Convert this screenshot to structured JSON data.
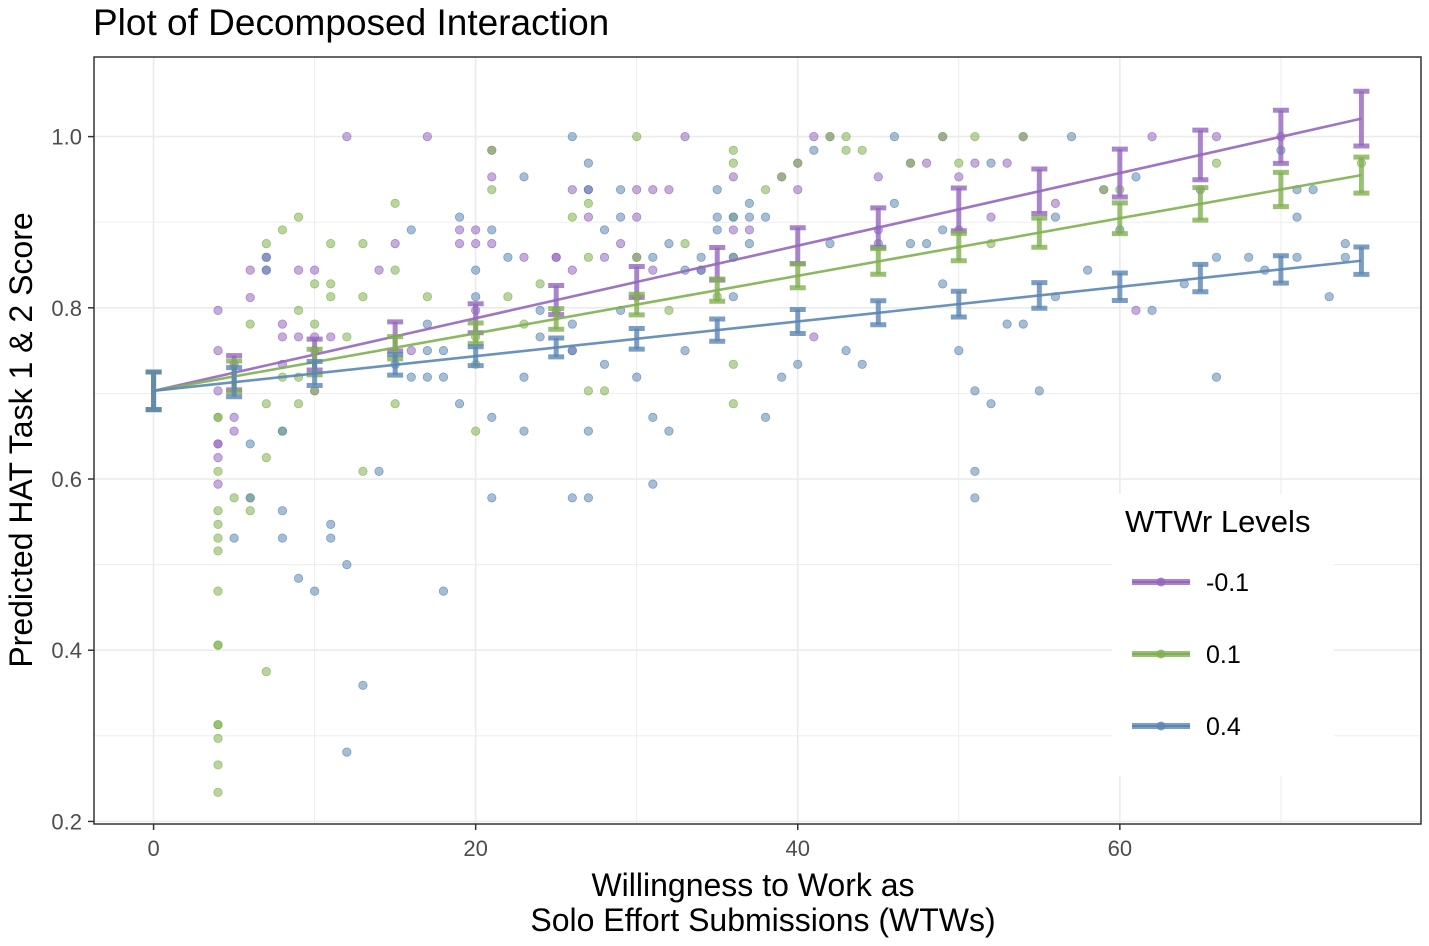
{
  "chart_data": {
    "type": "line",
    "title": "Plot of Decomposed Interaction",
    "xlabel": [
      "Willingness to Work as",
      "Solo Effort Submissions (WTWs)"
    ],
    "ylabel": "Predicted HAT Task 1 & 2 Score",
    "xlim": [
      -3.7,
      78.7
    ],
    "ylim": [
      0.197,
      1.093
    ],
    "x_ticks": [
      0,
      20,
      40,
      60
    ],
    "y_ticks": [
      0.2,
      0.4,
      0.6,
      0.8,
      1.0
    ],
    "y_tick_labels": [
      "0.2",
      "0.4",
      "0.6",
      "0.8",
      "1.0"
    ],
    "grid": true,
    "legend": {
      "title": "WTWr Levels",
      "position": "right-inside-bottom"
    },
    "error_bar_x": [
      0,
      5,
      10,
      15,
      20,
      25,
      30,
      35,
      40,
      45,
      50,
      55,
      60,
      65,
      70,
      75
    ],
    "series": [
      {
        "name": "-0.1",
        "color": "#9467bd",
        "line": [
          [
            0,
            0.703
          ],
          [
            75,
            1.021
          ]
        ],
        "error_halfwidth": [
          0.022,
          0.02,
          0.018,
          0.017,
          0.017,
          0.017,
          0.018,
          0.019,
          0.021,
          0.023,
          0.025,
          0.026,
          0.028,
          0.029,
          0.031,
          0.032
        ],
        "points": [
          [
            4,
            0.797
          ],
          [
            4,
            0.75
          ],
          [
            4,
            0.703
          ],
          [
            4,
            0.641
          ],
          [
            4,
            0.594
          ],
          [
            4,
            0.625
          ],
          [
            4,
            0.641
          ],
          [
            5,
            0.734
          ],
          [
            5,
            0.656
          ],
          [
            5,
            0.672
          ],
          [
            6,
            0.812
          ],
          [
            6,
            0.844
          ],
          [
            7,
            0.859
          ],
          [
            7,
            0.844
          ],
          [
            8,
            0.781
          ],
          [
            8,
            0.766
          ],
          [
            8,
            0.734
          ],
          [
            9,
            0.844
          ],
          [
            9,
            0.766
          ],
          [
            10,
            0.844
          ],
          [
            10,
            0.75
          ],
          [
            10,
            0.703
          ],
          [
            10,
            0.766
          ],
          [
            11,
            0.766
          ],
          [
            12,
            1.0
          ],
          [
            14,
            0.844
          ],
          [
            15,
            0.875
          ],
          [
            16,
            0.75
          ],
          [
            17,
            1.0
          ],
          [
            19,
            0.891
          ],
          [
            19,
            0.875
          ],
          [
            20,
            0.891
          ],
          [
            20,
            0.875
          ],
          [
            20,
            0.797
          ],
          [
            21,
            0.984
          ],
          [
            21,
            0.953
          ],
          [
            21,
            0.875
          ],
          [
            23,
            0.859
          ],
          [
            25,
            0.859
          ],
          [
            25,
            0.859
          ],
          [
            26,
            0.844
          ],
          [
            26,
            0.938
          ],
          [
            26,
            0.75
          ],
          [
            27,
            0.938
          ],
          [
            27,
            0.906
          ],
          [
            28,
            0.859
          ],
          [
            29,
            0.875
          ],
          [
            30,
            0.906
          ],
          [
            30,
            0.938
          ],
          [
            30,
            0.859
          ],
          [
            31,
            0.844
          ],
          [
            31,
            0.938
          ],
          [
            32,
            0.938
          ],
          [
            33,
            1.0
          ],
          [
            34,
            0.844
          ],
          [
            36,
            0.891
          ],
          [
            36,
            0.953
          ],
          [
            37,
            0.891
          ],
          [
            39,
            0.953
          ],
          [
            40,
            0.969
          ],
          [
            40,
            0.938
          ],
          [
            41,
            0.766
          ],
          [
            41,
            1.0
          ],
          [
            42,
            1.0
          ],
          [
            45,
            0.953
          ],
          [
            45,
            0.891
          ],
          [
            47,
            0.969
          ],
          [
            48,
            0.969
          ],
          [
            49,
            1.0
          ],
          [
            50,
            0.953
          ],
          [
            50,
            0.891
          ],
          [
            51,
            0.969
          ],
          [
            52,
            0.906
          ],
          [
            53,
            0.969
          ],
          [
            54,
            1.0
          ],
          [
            56,
            0.922
          ],
          [
            59,
            0.938
          ],
          [
            61,
            0.797
          ],
          [
            62,
            1.0
          ],
          [
            65,
            0.938
          ],
          [
            66,
            1.0
          ],
          [
            70,
            1.0
          ]
        ]
      },
      {
        "name": "0.1",
        "color": "#7fb050",
        "line": [
          [
            0,
            0.703
          ],
          [
            75,
            0.955
          ]
        ],
        "error_halfwidth": [
          0.022,
          0.018,
          0.015,
          0.013,
          0.012,
          0.012,
          0.012,
          0.013,
          0.014,
          0.015,
          0.016,
          0.017,
          0.018,
          0.019,
          0.02,
          0.021
        ],
        "points": [
          [
            4,
            0.672
          ],
          [
            4,
            0.672
          ],
          [
            4,
            0.609
          ],
          [
            4,
            0.563
          ],
          [
            4,
            0.547
          ],
          [
            4,
            0.531
          ],
          [
            4,
            0.516
          ],
          [
            4,
            0.469
          ],
          [
            4,
            0.406
          ],
          [
            4,
            0.406
          ],
          [
            4,
            0.313
          ],
          [
            4,
            0.313
          ],
          [
            4,
            0.297
          ],
          [
            4,
            0.266
          ],
          [
            4,
            0.234
          ],
          [
            5,
            0.578
          ],
          [
            6,
            0.781
          ],
          [
            6,
            0.578
          ],
          [
            6,
            0.563
          ],
          [
            7,
            0.875
          ],
          [
            7,
            0.688
          ],
          [
            7,
            0.625
          ],
          [
            7,
            0.375
          ],
          [
            8,
            0.891
          ],
          [
            8,
            0.719
          ],
          [
            8,
            0.656
          ],
          [
            9,
            0.906
          ],
          [
            9,
            0.797
          ],
          [
            9,
            0.719
          ],
          [
            9,
            0.688
          ],
          [
            10,
            0.828
          ],
          [
            10,
            0.781
          ],
          [
            10,
            0.703
          ],
          [
            11,
            0.875
          ],
          [
            11,
            0.828
          ],
          [
            11,
            0.813
          ],
          [
            12,
            0.766
          ],
          [
            13,
            0.875
          ],
          [
            13,
            0.813
          ],
          [
            13,
            0.609
          ],
          [
            15,
            0.922
          ],
          [
            15,
            0.844
          ],
          [
            15,
            0.688
          ],
          [
            17,
            0.813
          ],
          [
            20,
            0.766
          ],
          [
            20,
            0.734
          ],
          [
            20,
            0.656
          ],
          [
            21,
            0.984
          ],
          [
            21,
            0.938
          ],
          [
            22,
            0.813
          ],
          [
            23,
            0.781
          ],
          [
            24,
            0.828
          ],
          [
            26,
            0.906
          ],
          [
            27,
            0.922
          ],
          [
            27,
            0.859
          ],
          [
            27,
            0.703
          ],
          [
            28,
            0.703
          ],
          [
            30,
            1.0
          ],
          [
            30,
            0.859
          ],
          [
            30,
            0.813
          ],
          [
            32,
            0.797
          ],
          [
            33,
            0.875
          ],
          [
            35,
            0.813
          ],
          [
            36,
            0.984
          ],
          [
            36,
            0.969
          ],
          [
            36,
            0.906
          ],
          [
            36,
            0.859
          ],
          [
            36,
            0.734
          ],
          [
            36,
            0.688
          ],
          [
            38,
            0.938
          ],
          [
            39,
            0.953
          ],
          [
            40,
            0.969
          ],
          [
            42,
            1.0
          ],
          [
            43,
            1.0
          ],
          [
            43,
            0.984
          ],
          [
            44,
            0.984
          ],
          [
            47,
            0.969
          ],
          [
            49,
            1.0
          ],
          [
            50,
            0.969
          ],
          [
            51,
            1.0
          ],
          [
            52,
            0.875
          ],
          [
            54,
            1.0
          ],
          [
            59,
            0.938
          ],
          [
            60,
            0.938
          ],
          [
            66,
            0.969
          ],
          [
            75,
            0.969
          ]
        ]
      },
      {
        "name": "0.4",
        "color": "#5b86b3",
        "line": [
          [
            0,
            0.703
          ],
          [
            75,
            0.855
          ]
        ],
        "error_halfwidth": [
          0.022,
          0.017,
          0.014,
          0.012,
          0.011,
          0.011,
          0.012,
          0.013,
          0.014,
          0.014,
          0.015,
          0.015,
          0.016,
          0.016,
          0.016,
          0.016
        ],
        "points": [
          [
            5,
            0.531
          ],
          [
            6,
            0.641
          ],
          [
            6,
            0.578
          ],
          [
            7,
            0.844
          ],
          [
            7,
            0.859
          ],
          [
            8,
            0.656
          ],
          [
            8,
            0.563
          ],
          [
            8,
            0.531
          ],
          [
            9,
            0.484
          ],
          [
            10,
            0.469
          ],
          [
            11,
            0.547
          ],
          [
            11,
            0.531
          ],
          [
            12,
            0.5
          ],
          [
            12,
            0.281
          ],
          [
            13,
            0.359
          ],
          [
            14,
            0.609
          ],
          [
            15,
            0.734
          ],
          [
            16,
            0.891
          ],
          [
            16,
            0.719
          ],
          [
            17,
            0.781
          ],
          [
            17,
            0.75
          ],
          [
            17,
            0.719
          ],
          [
            18,
            0.75
          ],
          [
            18,
            0.719
          ],
          [
            18,
            0.469
          ],
          [
            19,
            0.906
          ],
          [
            19,
            0.688
          ],
          [
            20,
            0.844
          ],
          [
            20,
            0.813
          ],
          [
            21,
            0.891
          ],
          [
            21,
            0.672
          ],
          [
            21,
            0.578
          ],
          [
            22,
            0.859
          ],
          [
            23,
            0.953
          ],
          [
            23,
            0.719
          ],
          [
            23,
            0.656
          ],
          [
            24,
            0.766
          ],
          [
            24,
            0.797
          ],
          [
            25,
            0.797
          ],
          [
            26,
            1.0
          ],
          [
            26,
            0.781
          ],
          [
            26,
            0.75
          ],
          [
            26,
            0.578
          ],
          [
            27,
            0.969
          ],
          [
            27,
            0.938
          ],
          [
            27,
            0.578
          ],
          [
            27,
            0.656
          ],
          [
            28,
            0.891
          ],
          [
            28,
            0.734
          ],
          [
            29,
            0.938
          ],
          [
            29,
            0.906
          ],
          [
            29,
            0.797
          ],
          [
            30,
            0.719
          ],
          [
            31,
            0.859
          ],
          [
            31,
            0.672
          ],
          [
            31,
            0.594
          ],
          [
            32,
            0.875
          ],
          [
            32,
            0.656
          ],
          [
            33,
            0.844
          ],
          [
            33,
            0.75
          ],
          [
            34,
            0.859
          ],
          [
            34,
            0.844
          ],
          [
            35,
            0.938
          ],
          [
            35,
            0.906
          ],
          [
            35,
            0.891
          ],
          [
            36,
            0.906
          ],
          [
            36,
            0.859
          ],
          [
            36,
            0.813
          ],
          [
            37,
            0.922
          ],
          [
            37,
            0.906
          ],
          [
            37,
            0.875
          ],
          [
            38,
            0.906
          ],
          [
            38,
            0.672
          ],
          [
            39,
            0.719
          ],
          [
            40,
            0.734
          ],
          [
            41,
            0.984
          ],
          [
            42,
            0.875
          ],
          [
            43,
            0.75
          ],
          [
            44,
            0.734
          ],
          [
            45,
            0.875
          ],
          [
            46,
            0.922
          ],
          [
            46,
            1.0
          ],
          [
            47,
            0.875
          ],
          [
            48,
            0.875
          ],
          [
            49,
            0.891
          ],
          [
            49,
            0.828
          ],
          [
            50,
            0.75
          ],
          [
            51,
            0.703
          ],
          [
            51,
            0.609
          ],
          [
            51,
            0.578
          ],
          [
            52,
            0.969
          ],
          [
            52,
            0.688
          ],
          [
            53,
            0.781
          ],
          [
            54,
            0.781
          ],
          [
            55,
            0.703
          ],
          [
            56,
            0.906
          ],
          [
            56,
            0.813
          ],
          [
            57,
            1.0
          ],
          [
            58,
            0.844
          ],
          [
            60,
            0.891
          ],
          [
            61,
            0.953
          ],
          [
            62,
            0.797
          ],
          [
            64,
            0.828
          ],
          [
            66,
            0.719
          ],
          [
            66,
            0.859
          ],
          [
            68,
            0.859
          ],
          [
            69,
            0.844
          ],
          [
            71,
            0.938
          ],
          [
            71,
            0.906
          ],
          [
            71,
            0.859
          ],
          [
            72,
            0.938
          ],
          [
            73,
            0.813
          ],
          [
            74,
            0.875
          ],
          [
            74,
            0.859
          ],
          [
            70,
            0.984
          ]
        ]
      }
    ]
  }
}
